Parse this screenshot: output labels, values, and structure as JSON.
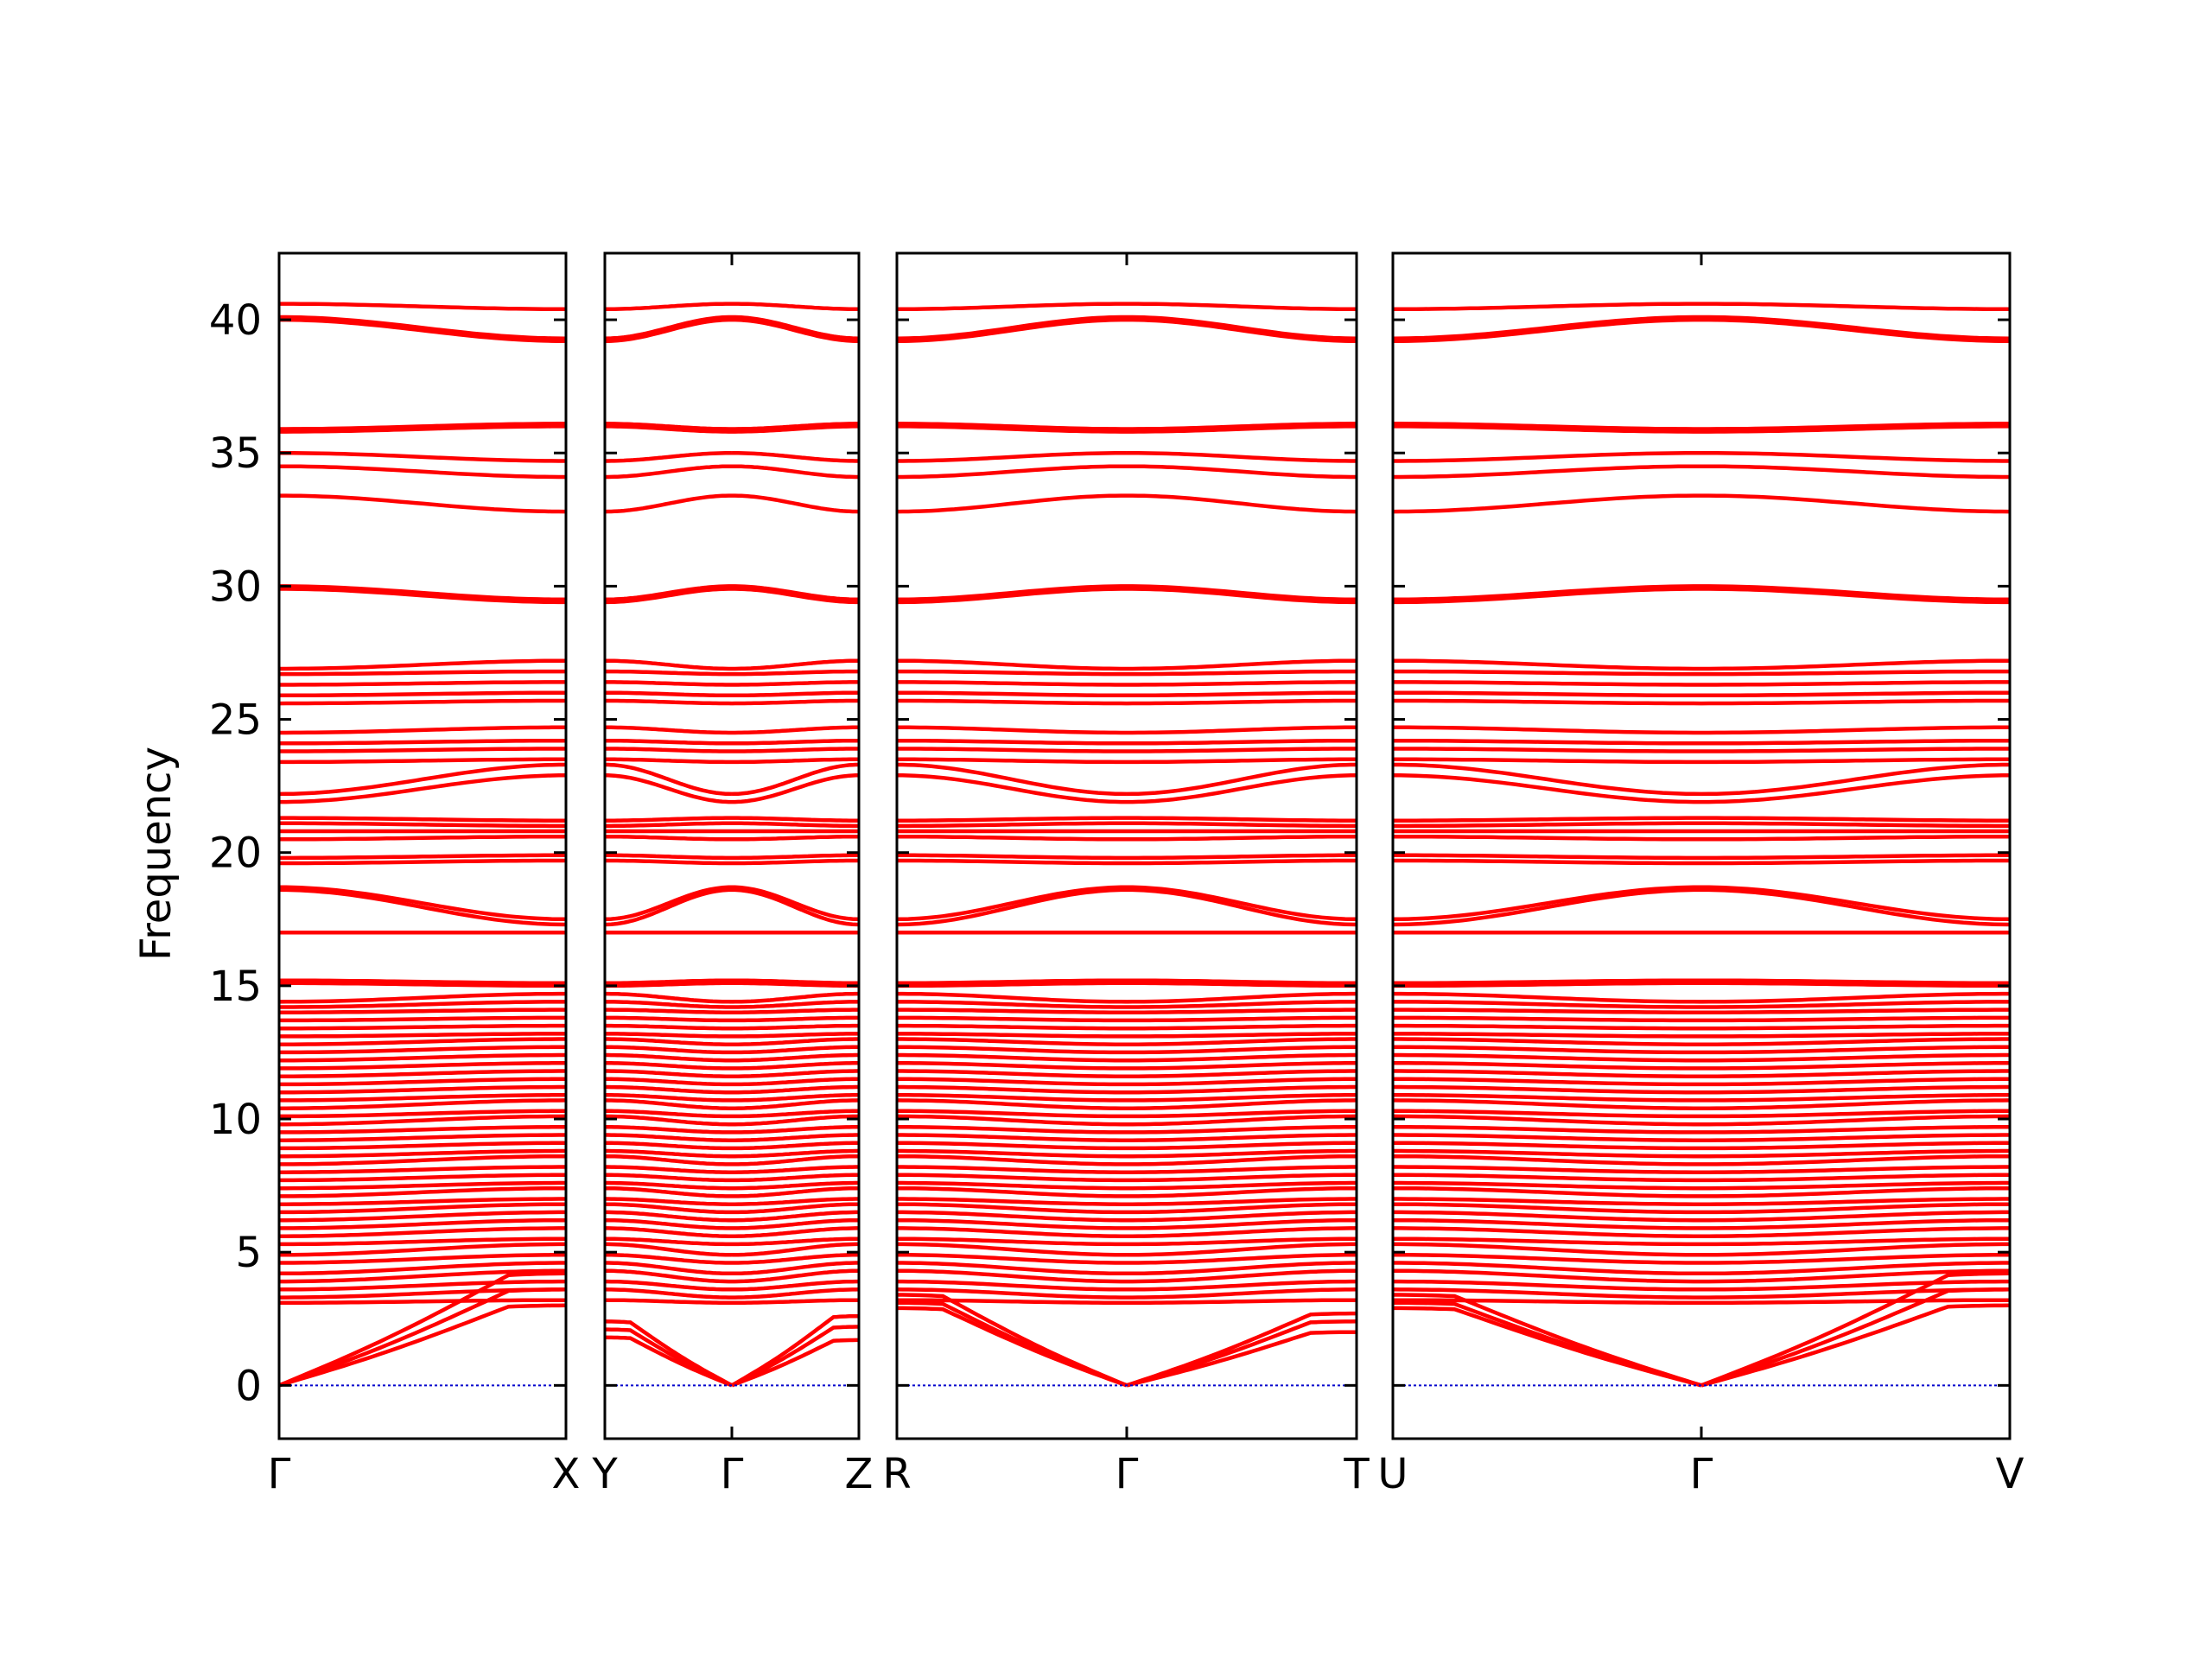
{
  "chart_data": {
    "type": "line",
    "title": "",
    "ylabel": "Frequency",
    "xlabel": "",
    "ylim": [
      -2,
      42.5
    ],
    "yticks": [
      0,
      5,
      10,
      15,
      20,
      25,
      30,
      35,
      40
    ],
    "line_color": "#ff0000",
    "zero_line_color": "#0000cc",
    "grid": false,
    "legend": "none",
    "panels": [
      {
        "segments": [
          {
            "start": "Γ",
            "end": "X",
            "shape": "gx"
          }
        ],
        "tick_labels": [
          "Γ",
          "X"
        ]
      },
      {
        "segments": [
          {
            "start": "Y",
            "end": "Γ",
            "shape": "yg"
          },
          {
            "start": "Γ",
            "end": "Z",
            "shape": "gz"
          }
        ],
        "tick_labels": [
          "Y",
          "Γ",
          "Z"
        ]
      },
      {
        "segments": [
          {
            "start": "R",
            "end": "Γ",
            "shape": "rg"
          },
          {
            "start": "Γ",
            "end": "T",
            "shape": "gt"
          }
        ],
        "tick_labels": [
          "R",
          "Γ",
          "T"
        ]
      },
      {
        "segments": [
          {
            "start": "U",
            "end": "Γ",
            "shape": "rg"
          },
          {
            "start": "Γ",
            "end": "V",
            "shape": "gx"
          }
        ],
        "tick_labels": [
          "U",
          "Γ",
          "V"
        ]
      }
    ],
    "acoustic_branches": {
      "gx": [
        3.0,
        3.6,
        4.2
      ],
      "yg": [
        1.8,
        2.1,
        2.4
      ],
      "gz": [
        1.7,
        2.2,
        2.6
      ],
      "rg": [
        2.9,
        3.1,
        3.4
      ],
      "gt": [
        2.0,
        2.4,
        2.7
      ]
    },
    "optical_bands": [
      {
        "g": 3.1,
        "e": 3.2
      },
      {
        "g": 3.3,
        "e": 3.6
      },
      {
        "g": 3.6,
        "e": 3.9
      },
      {
        "g": 3.9,
        "e": 4.3
      },
      {
        "g": 4.2,
        "e": 4.6
      },
      {
        "g": 4.6,
        "e": 4.9
      },
      {
        "g": 4.9,
        "e": 5.3
      },
      {
        "g": 5.3,
        "e": 5.5
      },
      {
        "g": 5.6,
        "e": 5.9
      },
      {
        "g": 5.9,
        "e": 6.2
      },
      {
        "g": 6.2,
        "e": 6.5
      },
      {
        "g": 6.5,
        "e": 6.8
      },
      {
        "g": 6.8,
        "e": 7.0
      },
      {
        "g": 7.1,
        "e": 7.4
      },
      {
        "g": 7.4,
        "e": 7.6
      },
      {
        "g": 7.7,
        "e": 7.9
      },
      {
        "g": 8.0,
        "e": 8.2
      },
      {
        "g": 8.3,
        "e": 8.6
      },
      {
        "g": 8.6,
        "e": 8.8
      },
      {
        "g": 8.9,
        "e": 9.1
      },
      {
        "g": 9.2,
        "e": 9.4
      },
      {
        "g": 9.5,
        "e": 9.7
      },
      {
        "g": 9.8,
        "e": 10.1
      },
      {
        "g": 10.1,
        "e": 10.3
      },
      {
        "g": 10.4,
        "e": 10.7
      },
      {
        "g": 10.7,
        "e": 10.9
      },
      {
        "g": 11.0,
        "e": 11.2
      },
      {
        "g": 11.3,
        "e": 11.5
      },
      {
        "g": 11.6,
        "e": 11.8
      },
      {
        "g": 11.9,
        "e": 12.1
      },
      {
        "g": 12.2,
        "e": 12.4
      },
      {
        "g": 12.5,
        "e": 12.7
      },
      {
        "g": 12.8,
        "e": 13.0
      },
      {
        "g": 13.1,
        "e": 13.2
      },
      {
        "g": 13.4,
        "e": 13.5
      },
      {
        "g": 13.7,
        "e": 13.8
      },
      {
        "g": 14.0,
        "e": 14.1
      },
      {
        "g": 14.2,
        "e": 14.4
      },
      {
        "g": 14.4,
        "e": 14.7
      },
      {
        "g": 15.1,
        "e": 15.0
      },
      {
        "g": 15.2,
        "e": 15.1
      },
      {
        "g": 17.0,
        "e": 17.0
      },
      {
        "g": 18.6,
        "e": 17.3
      },
      {
        "g": 18.7,
        "e": 17.5
      },
      {
        "g": 19.6,
        "e": 19.7
      },
      {
        "g": 19.8,
        "e": 19.9
      },
      {
        "g": 20.5,
        "e": 20.6
      },
      {
        "g": 20.8,
        "e": 20.8
      },
      {
        "g": 21.1,
        "e": 21.0
      },
      {
        "g": 21.3,
        "e": 21.2
      },
      {
        "g": 21.9,
        "e": 22.9
      },
      {
        "g": 22.2,
        "e": 23.3
      },
      {
        "g": 23.4,
        "e": 23.5
      },
      {
        "g": 23.8,
        "e": 23.9
      },
      {
        "g": 24.1,
        "e": 24.2
      },
      {
        "g": 24.5,
        "e": 24.7
      },
      {
        "g": 25.6,
        "e": 25.7
      },
      {
        "g": 25.9,
        "e": 26.0
      },
      {
        "g": 26.3,
        "e": 26.4
      },
      {
        "g": 26.7,
        "e": 26.8
      },
      {
        "g": 26.9,
        "e": 27.2
      },
      {
        "g": 29.9,
        "e": 29.4
      },
      {
        "g": 30.0,
        "e": 29.5
      },
      {
        "g": 33.4,
        "e": 32.8
      },
      {
        "g": 34.5,
        "e": 34.1
      },
      {
        "g": 35.0,
        "e": 34.7
      },
      {
        "g": 35.8,
        "e": 36.0
      },
      {
        "g": 35.9,
        "e": 36.1
      },
      {
        "g": 40.0,
        "e": 39.2
      },
      {
        "g": 40.1,
        "e": 39.3
      },
      {
        "g": 40.6,
        "e": 40.4
      }
    ]
  }
}
